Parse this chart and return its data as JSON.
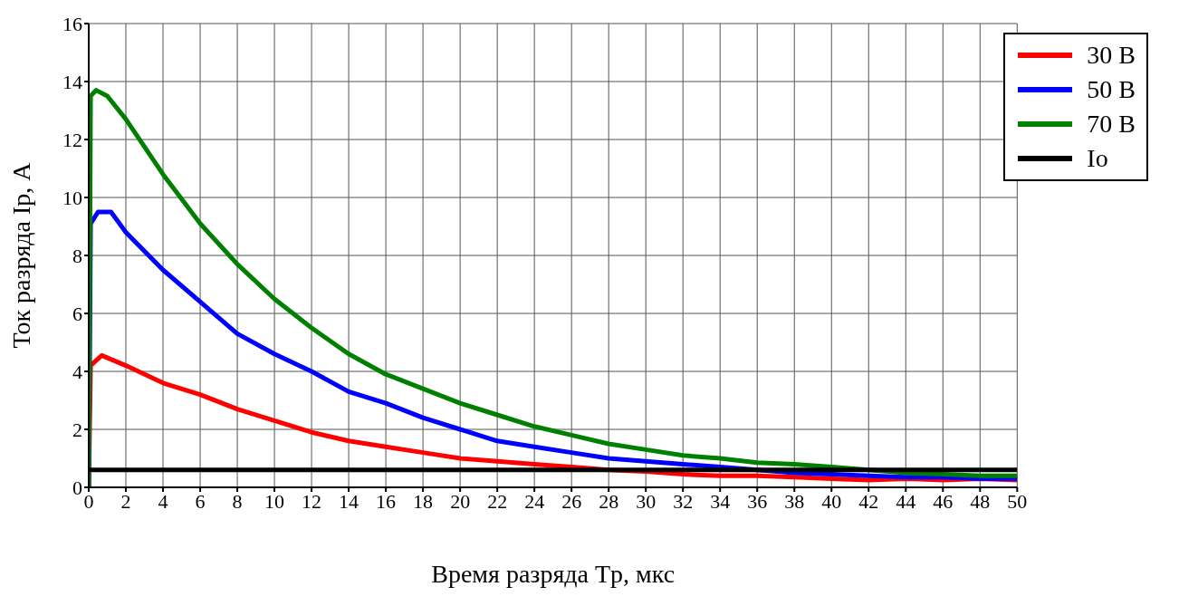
{
  "chart_data": {
    "type": "line",
    "xlabel": "Время разряда Tр, мкс",
    "ylabel": "Ток разряда Iр, А",
    "xlim": [
      0,
      50
    ],
    "xticks": [
      0,
      2,
      4,
      6,
      8,
      10,
      12,
      14,
      16,
      18,
      20,
      22,
      24,
      26,
      28,
      30,
      32,
      34,
      36,
      38,
      40,
      42,
      44,
      46,
      48,
      50
    ],
    "ylim": [
      0,
      16
    ],
    "yticks": [
      0,
      2,
      4,
      6,
      8,
      10,
      12,
      14,
      16
    ],
    "grid": true,
    "legend": "top right",
    "marker": "none",
    "line_style": "solid",
    "series": [
      {
        "name": "30 В",
        "color": "#ff0000",
        "x": [
          0,
          0.1,
          0.7,
          2,
          4,
          6,
          8,
          10,
          12,
          14,
          16,
          18,
          20,
          22,
          24,
          26,
          28,
          30,
          32,
          34,
          36,
          38,
          40,
          42,
          44,
          46,
          48,
          50
        ],
        "values": [
          0,
          4.2,
          4.55,
          4.2,
          3.6,
          3.2,
          2.7,
          2.3,
          1.9,
          1.6,
          1.4,
          1.2,
          1.0,
          0.9,
          0.8,
          0.7,
          0.6,
          0.55,
          0.45,
          0.4,
          0.4,
          0.35,
          0.3,
          0.25,
          0.3,
          0.25,
          0.3,
          0.25
        ]
      },
      {
        "name": "50 В",
        "color": "#0000ff",
        "x": [
          0,
          0.1,
          0.5,
          1.2,
          2,
          4,
          6,
          8,
          10,
          12,
          14,
          16,
          18,
          20,
          22,
          24,
          26,
          28,
          30,
          32,
          34,
          36,
          38,
          40,
          42,
          44,
          46,
          48,
          50
        ],
        "values": [
          0,
          9.1,
          9.5,
          9.5,
          8.8,
          7.5,
          6.4,
          5.3,
          4.6,
          4.0,
          3.3,
          2.9,
          2.4,
          2.0,
          1.6,
          1.4,
          1.2,
          1.0,
          0.9,
          0.8,
          0.7,
          0.6,
          0.5,
          0.45,
          0.4,
          0.35,
          0.35,
          0.3,
          0.3
        ]
      },
      {
        "name": "70 В",
        "color": "#008000",
        "x": [
          0,
          0.1,
          0.4,
          1.0,
          2,
          4,
          6,
          8,
          10,
          12,
          14,
          16,
          18,
          20,
          22,
          24,
          26,
          28,
          30,
          32,
          34,
          36,
          38,
          40,
          42,
          44,
          46,
          48,
          50
        ],
        "values": [
          0,
          13.5,
          13.7,
          13.5,
          12.7,
          10.8,
          9.1,
          7.7,
          6.5,
          5.5,
          4.6,
          3.9,
          3.4,
          2.9,
          2.5,
          2.1,
          1.8,
          1.5,
          1.3,
          1.1,
          1.0,
          0.85,
          0.8,
          0.7,
          0.6,
          0.5,
          0.45,
          0.4,
          0.4
        ]
      },
      {
        "name": "Io",
        "color": "#000000",
        "x": [
          0,
          50
        ],
        "values": [
          0.6,
          0.6
        ]
      }
    ]
  }
}
